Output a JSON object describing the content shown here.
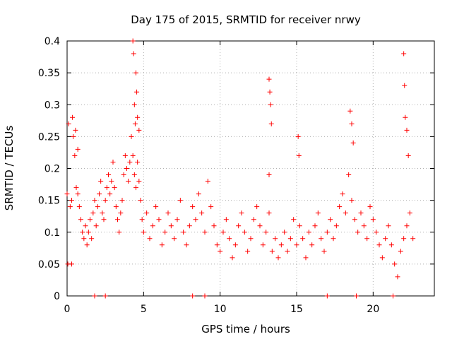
{
  "chart_data": {
    "type": "scatter",
    "title": "Day 175 of 2015, SRMTID for receiver nrwy",
    "xlabel": "GPS time / hours",
    "ylabel": "SRMTID / TECUs",
    "xlim": [
      0,
      24
    ],
    "ylim": [
      0,
      0.4
    ],
    "x_ticks": [
      0,
      5,
      10,
      15,
      20
    ],
    "x_tick_labels": [
      "0",
      "5",
      "10",
      "15",
      "20"
    ],
    "y_ticks": [
      0,
      0.05,
      0.1,
      0.15,
      0.2,
      0.25,
      0.3,
      0.35,
      0.4
    ],
    "y_tick_labels": [
      "0",
      "0.05",
      "0.1",
      "0.15",
      "0.2",
      "0.25",
      "0.3",
      "0.35",
      "0.4"
    ],
    "grid": true,
    "marker": "+",
    "color": "#ff0000",
    "series": [
      {
        "name": "SRMTID",
        "x": [
          0.0,
          0.1,
          0.2,
          0.3,
          0.4,
          0.5,
          0.6,
          0.7,
          0.8,
          0.9,
          1.0,
          1.1,
          1.2,
          1.3,
          1.4,
          1.5,
          1.6,
          1.7,
          1.8,
          1.9,
          2.0,
          2.1,
          2.2,
          2.3,
          2.4,
          2.5,
          2.6,
          2.7,
          2.8,
          2.9,
          3.0,
          3.1,
          3.2,
          3.3,
          3.4,
          3.5,
          3.6,
          3.7,
          3.8,
          3.9,
          4.0,
          4.1,
          4.2,
          4.3,
          4.4,
          4.5,
          4.6,
          4.7,
          4.8,
          4.9,
          5.0,
          5.2,
          5.4,
          5.6,
          5.8,
          6.0,
          6.2,
          6.4,
          6.6,
          6.8,
          7.0,
          7.2,
          7.4,
          7.6,
          7.8,
          8.0,
          8.2,
          8.4,
          8.6,
          8.8,
          9.0,
          9.2,
          9.4,
          9.6,
          9.8,
          10.0,
          10.2,
          10.4,
          10.6,
          10.8,
          11.0,
          11.2,
          11.4,
          11.6,
          11.8,
          12.0,
          12.2,
          12.4,
          12.6,
          12.8,
          13.0,
          13.2,
          13.4,
          13.6,
          13.8,
          14.0,
          14.2,
          14.4,
          14.6,
          14.8,
          15.0,
          15.2,
          15.4,
          15.6,
          15.8,
          16.0,
          16.2,
          16.4,
          16.6,
          16.8,
          17.0,
          17.2,
          17.4,
          17.6,
          17.8,
          18.0,
          18.2,
          18.4,
          18.6,
          18.8,
          19.0,
          19.2,
          19.4,
          19.6,
          19.8,
          20.0,
          20.2,
          20.4,
          20.6,
          20.8,
          21.0,
          21.2,
          21.4,
          21.6,
          21.8,
          22.0,
          22.2,
          22.4,
          22.6,
          0.05,
          0.3,
          0.35,
          0.55,
          0.7,
          4.3,
          4.35,
          4.5,
          4.55,
          4.6,
          4.4,
          4.45,
          4.7,
          13.2,
          13.25,
          13.3,
          13.35,
          13.2,
          15.1,
          15.15,
          18.5,
          18.6,
          18.7,
          22.0,
          22.05,
          22.1,
          22.2,
          22.3,
          1.8,
          2.5,
          8.2,
          9.0,
          17.0,
          18.9,
          21.3
        ],
        "y": [
          0.16,
          0.27,
          0.14,
          0.15,
          0.25,
          0.22,
          0.17,
          0.16,
          0.14,
          0.12,
          0.1,
          0.09,
          0.11,
          0.08,
          0.1,
          0.12,
          0.09,
          0.13,
          0.15,
          0.11,
          0.14,
          0.16,
          0.18,
          0.13,
          0.12,
          0.15,
          0.17,
          0.19,
          0.16,
          0.18,
          0.21,
          0.17,
          0.14,
          0.12,
          0.1,
          0.13,
          0.15,
          0.19,
          0.22,
          0.2,
          0.18,
          0.21,
          0.25,
          0.22,
          0.19,
          0.17,
          0.21,
          0.18,
          0.15,
          0.12,
          0.1,
          0.13,
          0.09,
          0.11,
          0.14,
          0.12,
          0.08,
          0.1,
          0.13,
          0.11,
          0.09,
          0.12,
          0.15,
          0.1,
          0.08,
          0.11,
          0.14,
          0.12,
          0.16,
          0.13,
          0.1,
          0.18,
          0.14,
          0.11,
          0.08,
          0.07,
          0.1,
          0.12,
          0.09,
          0.06,
          0.08,
          0.11,
          0.13,
          0.1,
          0.07,
          0.09,
          0.12,
          0.14,
          0.11,
          0.08,
          0.1,
          0.13,
          0.07,
          0.09,
          0.06,
          0.08,
          0.1,
          0.07,
          0.09,
          0.12,
          0.08,
          0.11,
          0.09,
          0.06,
          0.1,
          0.08,
          0.11,
          0.13,
          0.09,
          0.07,
          0.1,
          0.12,
          0.09,
          0.11,
          0.14,
          0.16,
          0.13,
          0.19,
          0.15,
          0.12,
          0.1,
          0.13,
          0.11,
          0.09,
          0.14,
          0.12,
          0.1,
          0.08,
          0.06,
          0.09,
          0.11,
          0.08,
          0.05,
          0.03,
          0.07,
          0.09,
          0.11,
          0.13,
          0.09,
          0.05,
          0.05,
          0.28,
          0.26,
          0.23,
          0.4,
          0.38,
          0.35,
          0.32,
          0.28,
          0.3,
          0.27,
          0.26,
          0.34,
          0.32,
          0.3,
          0.27,
          0.19,
          0.25,
          0.22,
          0.29,
          0.27,
          0.24,
          0.38,
          0.33,
          0.28,
          0.26,
          0.22,
          0.0,
          0.0,
          0.0,
          0.0,
          0.0,
          0.0,
          0.0
        ]
      }
    ]
  }
}
